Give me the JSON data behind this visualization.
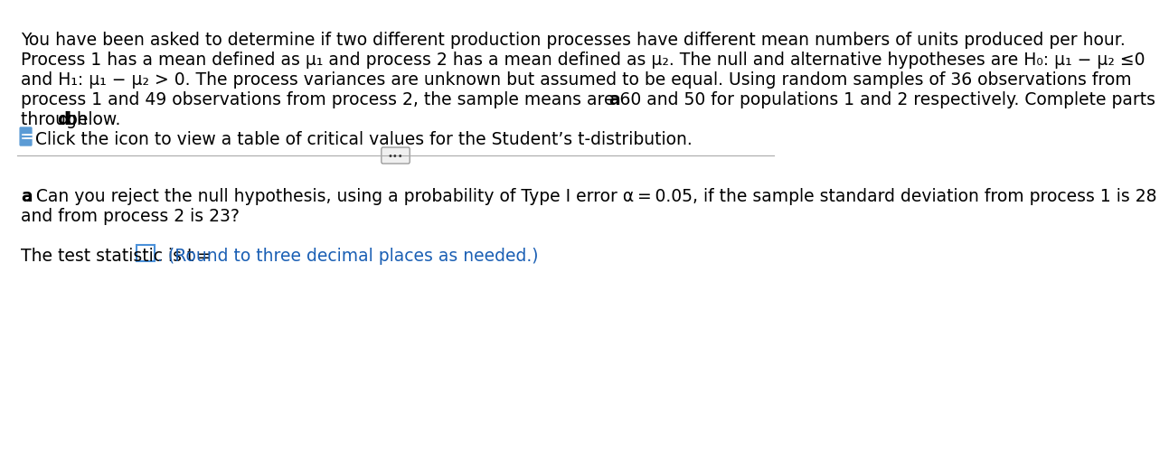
{
  "bg_color": "#ffffff",
  "top_paragraph": [
    "You have been asked to determine if two different production processes have different mean numbers of units produced per hour.",
    "Process 1 has a mean defined as μ₁ and process 2 has a mean defined as μ₂. The null and alternative hypotheses are H₀: μ₁ − μ₂ ≤0",
    "and H₁: μ₁ − μ₂ > 0. The process variances are unknown but assumed to be equal. Using random samples of 36 observations from",
    "process 1 and 49 observations from process 2, the sample means are 60 and 50 for populations 1 and 2 respectively. Complete parts a",
    "through d below."
  ],
  "click_text": "Click the icon to view a table of critical values for the Student’s t-distribution.",
  "divider_dots": "···",
  "part_a_line1": "a. Can you reject the null hypothesis, using a probability of Type I error α = 0.05, if the sample standard deviation from process 1 is 28",
  "part_a_line2": "and from process 2 is 23?",
  "test_stat_prefix": "The test statistic is t =",
  "test_stat_suffix": ". (Round to three decimal places as needed.)",
  "text_color": "#000000",
  "blue_color": "#1a5fb4",
  "box_color": "#4a90d9",
  "font_size_main": 13.5,
  "font_size_small": 13.0,
  "icon_color": "#5b9bd5"
}
